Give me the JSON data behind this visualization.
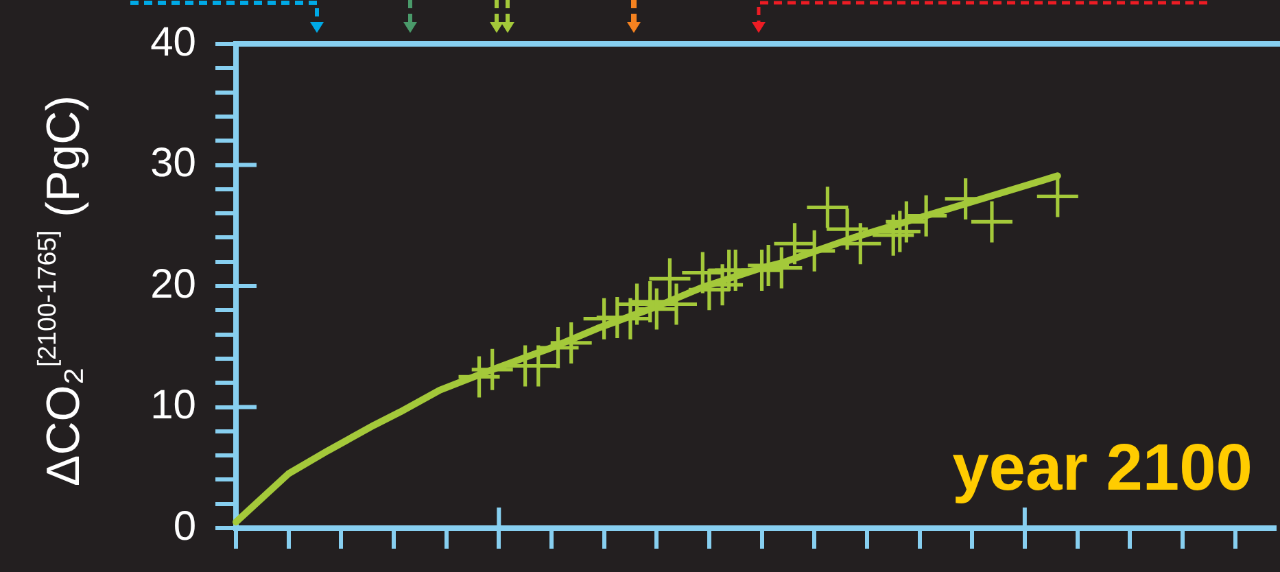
{
  "chart_data": {
    "type": "line",
    "ylabel": "ΔCO₂$^{[2100-1765]}$ (PgC)",
    "annotations": [
      "year 2100"
    ],
    "categories": [
      null,
      null,
      null,
      null,
      null,
      null,
      null,
      null,
      null,
      null,
      null,
      null,
      null,
      null,
      null,
      null,
      null,
      null,
      null,
      null,
      null,
      null,
      null,
      null,
      null,
      null,
      null,
      null,
      null,
      null,
      null,
      null,
      null,
      null,
      null,
      null,
      null,
      null,
      null,
      null,
      null,
      null,
      null,
      null,
      null,
      null,
      null,
      null,
      null,
      null,
      null,
      null,
      null,
      null,
      null,
      null,
      null,
      null,
      null,
      null,
      null,
      null,
      null,
      null,
      null,
      null,
      null,
      null,
      null,
      null,
      null,
      null,
      null,
      null,
      null,
      null,
      null,
      null,
      null,
      null,
      null,
      null,
      null,
      null,
      null,
      null,
      null,
      null,
      null,
      null,
      null,
      null,
      null,
      null,
      null,
      null,
      null,
      null,
      null,
      null,
      null,
      null,
      null,
      null,
      null,
      null,
      null,
      null,
      null,
      null,
      null,
      null,
      null,
      null,
      null,
      null,
      null,
      null,
      null,
      null,
      null,
      null,
      null,
      null,
      null,
      null,
      null,
      null,
      null,
      null,
      null,
      null,
      null,
      null,
      null,
      null,
      null,
      null,
      null,
      null,
      null,
      null,
      null,
      null,
      null,
      null,
      null,
      null,
      null,
      null,
      null,
      null,
      null,
      null,
      null,
      null,
      null,
      null,
      null
    ],
    "series": [
      {
        "type": "scatter",
        "marker": "cross",
        "color": "#a4c93a",
        "values": [
          null,
          null,
          null,
          null,
          null,
          null,
          null,
          null,
          null,
          null,
          null,
          null,
          null,
          null,
          null,
          null,
          null,
          null,
          null,
          null,
          null,
          null,
          null,
          null,
          null,
          null,
          null,
          null,
          null,
          null,
          null,
          null,
          null,
          null,
          null,
          null,
          null,
          12.5,
          null,
          13.1,
          null,
          null,
          null,
          null,
          13.4,
          null,
          13.4,
          null,
          null,
          14.9,
          null,
          15.3,
          null,
          null,
          null,
          null,
          17.3,
          null,
          17.4,
          null,
          17.3,
          18.5,
          null,
          18.7,
          18.1,
          null,
          20.6,
          18.5,
          null,
          null,
          null,
          21.1,
          19.7,
          null,
          20.1,
          21.3,
          21.3,
          null,
          null,
          null,
          21.3,
          21.7,
          null,
          21.5,
          null,
          23.5,
          null,
          null,
          22.9,
          null,
          26.5,
          null,
          null,
          24.7,
          null,
          23.5,
          null,
          null,
          null,
          null,
          24.2,
          24.5,
          25.3,
          null,
          null,
          25.8,
          null,
          null,
          null,
          null,
          null,
          27.2,
          null,
          null,
          null,
          25.3,
          null,
          null,
          null,
          null,
          null,
          null,
          null,
          null,
          null,
          27.4,
          null,
          null,
          null,
          null,
          null,
          null,
          null,
          null,
          null,
          null,
          null,
          null,
          null,
          null,
          null,
          null,
          null,
          null,
          null,
          null,
          null,
          null,
          null,
          null,
          null,
          null,
          null,
          null,
          null,
          null,
          null,
          null,
          null
        ]
      },
      {
        "type": "line",
        "marker": "none",
        "color": "#a4c93a",
        "values": [
          0.5,
          null,
          null,
          null,
          null,
          null,
          null,
          null,
          4.5,
          null,
          null,
          null,
          null,
          null,
          6.4,
          null,
          null,
          null,
          null,
          null,
          null,
          8.5,
          null,
          null,
          null,
          9.6,
          null,
          null,
          null,
          null,
          null,
          11.4,
          null,
          null,
          null,
          null,
          null,
          null,
          null,
          13.1,
          null,
          null,
          null,
          null,
          null,
          null,
          null,
          null,
          14.9,
          null,
          null,
          null,
          null,
          null,
          null,
          16.5,
          null,
          null,
          null,
          null,
          null,
          null,
          null,
          null,
          18.3,
          null,
          null,
          null,
          null,
          null,
          null,
          19.9,
          null,
          null,
          null,
          null,
          null,
          null,
          null,
          null,
          21.5,
          null,
          null,
          21.9,
          null,
          null,
          null,
          null,
          null,
          null,
          null,
          null,
          null,
          null,
          24.0,
          null,
          null,
          null,
          null,
          null,
          null,
          null,
          null,
          null,
          null,
          null,
          null,
          null,
          26.3,
          null,
          null,
          null,
          null,
          null,
          null,
          null,
          null,
          null,
          null,
          null,
          null,
          null,
          null,
          null,
          null,
          29.1,
          null,
          null,
          null,
          null,
          null,
          null,
          null,
          null,
          null,
          null,
          null,
          null,
          null,
          null,
          null,
          null,
          null,
          null,
          null,
          null,
          null,
          null,
          null,
          null,
          null,
          null,
          null,
          null,
          null,
          null,
          null,
          null,
          null
        ]
      }
    ],
    "ylim": [
      0,
      40
    ],
    "yticks": [
      0,
      {
        "value": 2,
        "label": null
      },
      {
        "value": 4,
        "label": null
      },
      {
        "value": 6,
        "label": null
      },
      {
        "value": 8,
        "label": null
      },
      10,
      {
        "value": 12,
        "label": null
      },
      {
        "value": 14,
        "label": null
      },
      {
        "value": 16,
        "label": null
      },
      {
        "value": 18,
        "label": null
      },
      20,
      {
        "value": 22,
        "label": null
      },
      {
        "value": 24,
        "label": null
      },
      {
        "value": 26,
        "label": null
      },
      {
        "value": 28,
        "label": null
      },
      30,
      {
        "value": 32,
        "label": null
      },
      {
        "value": 34,
        "label": null
      },
      {
        "value": 36,
        "label": null
      },
      {
        "value": 38,
        "label": null
      },
      40
    ],
    "tick_labels": "y"
  }
}
